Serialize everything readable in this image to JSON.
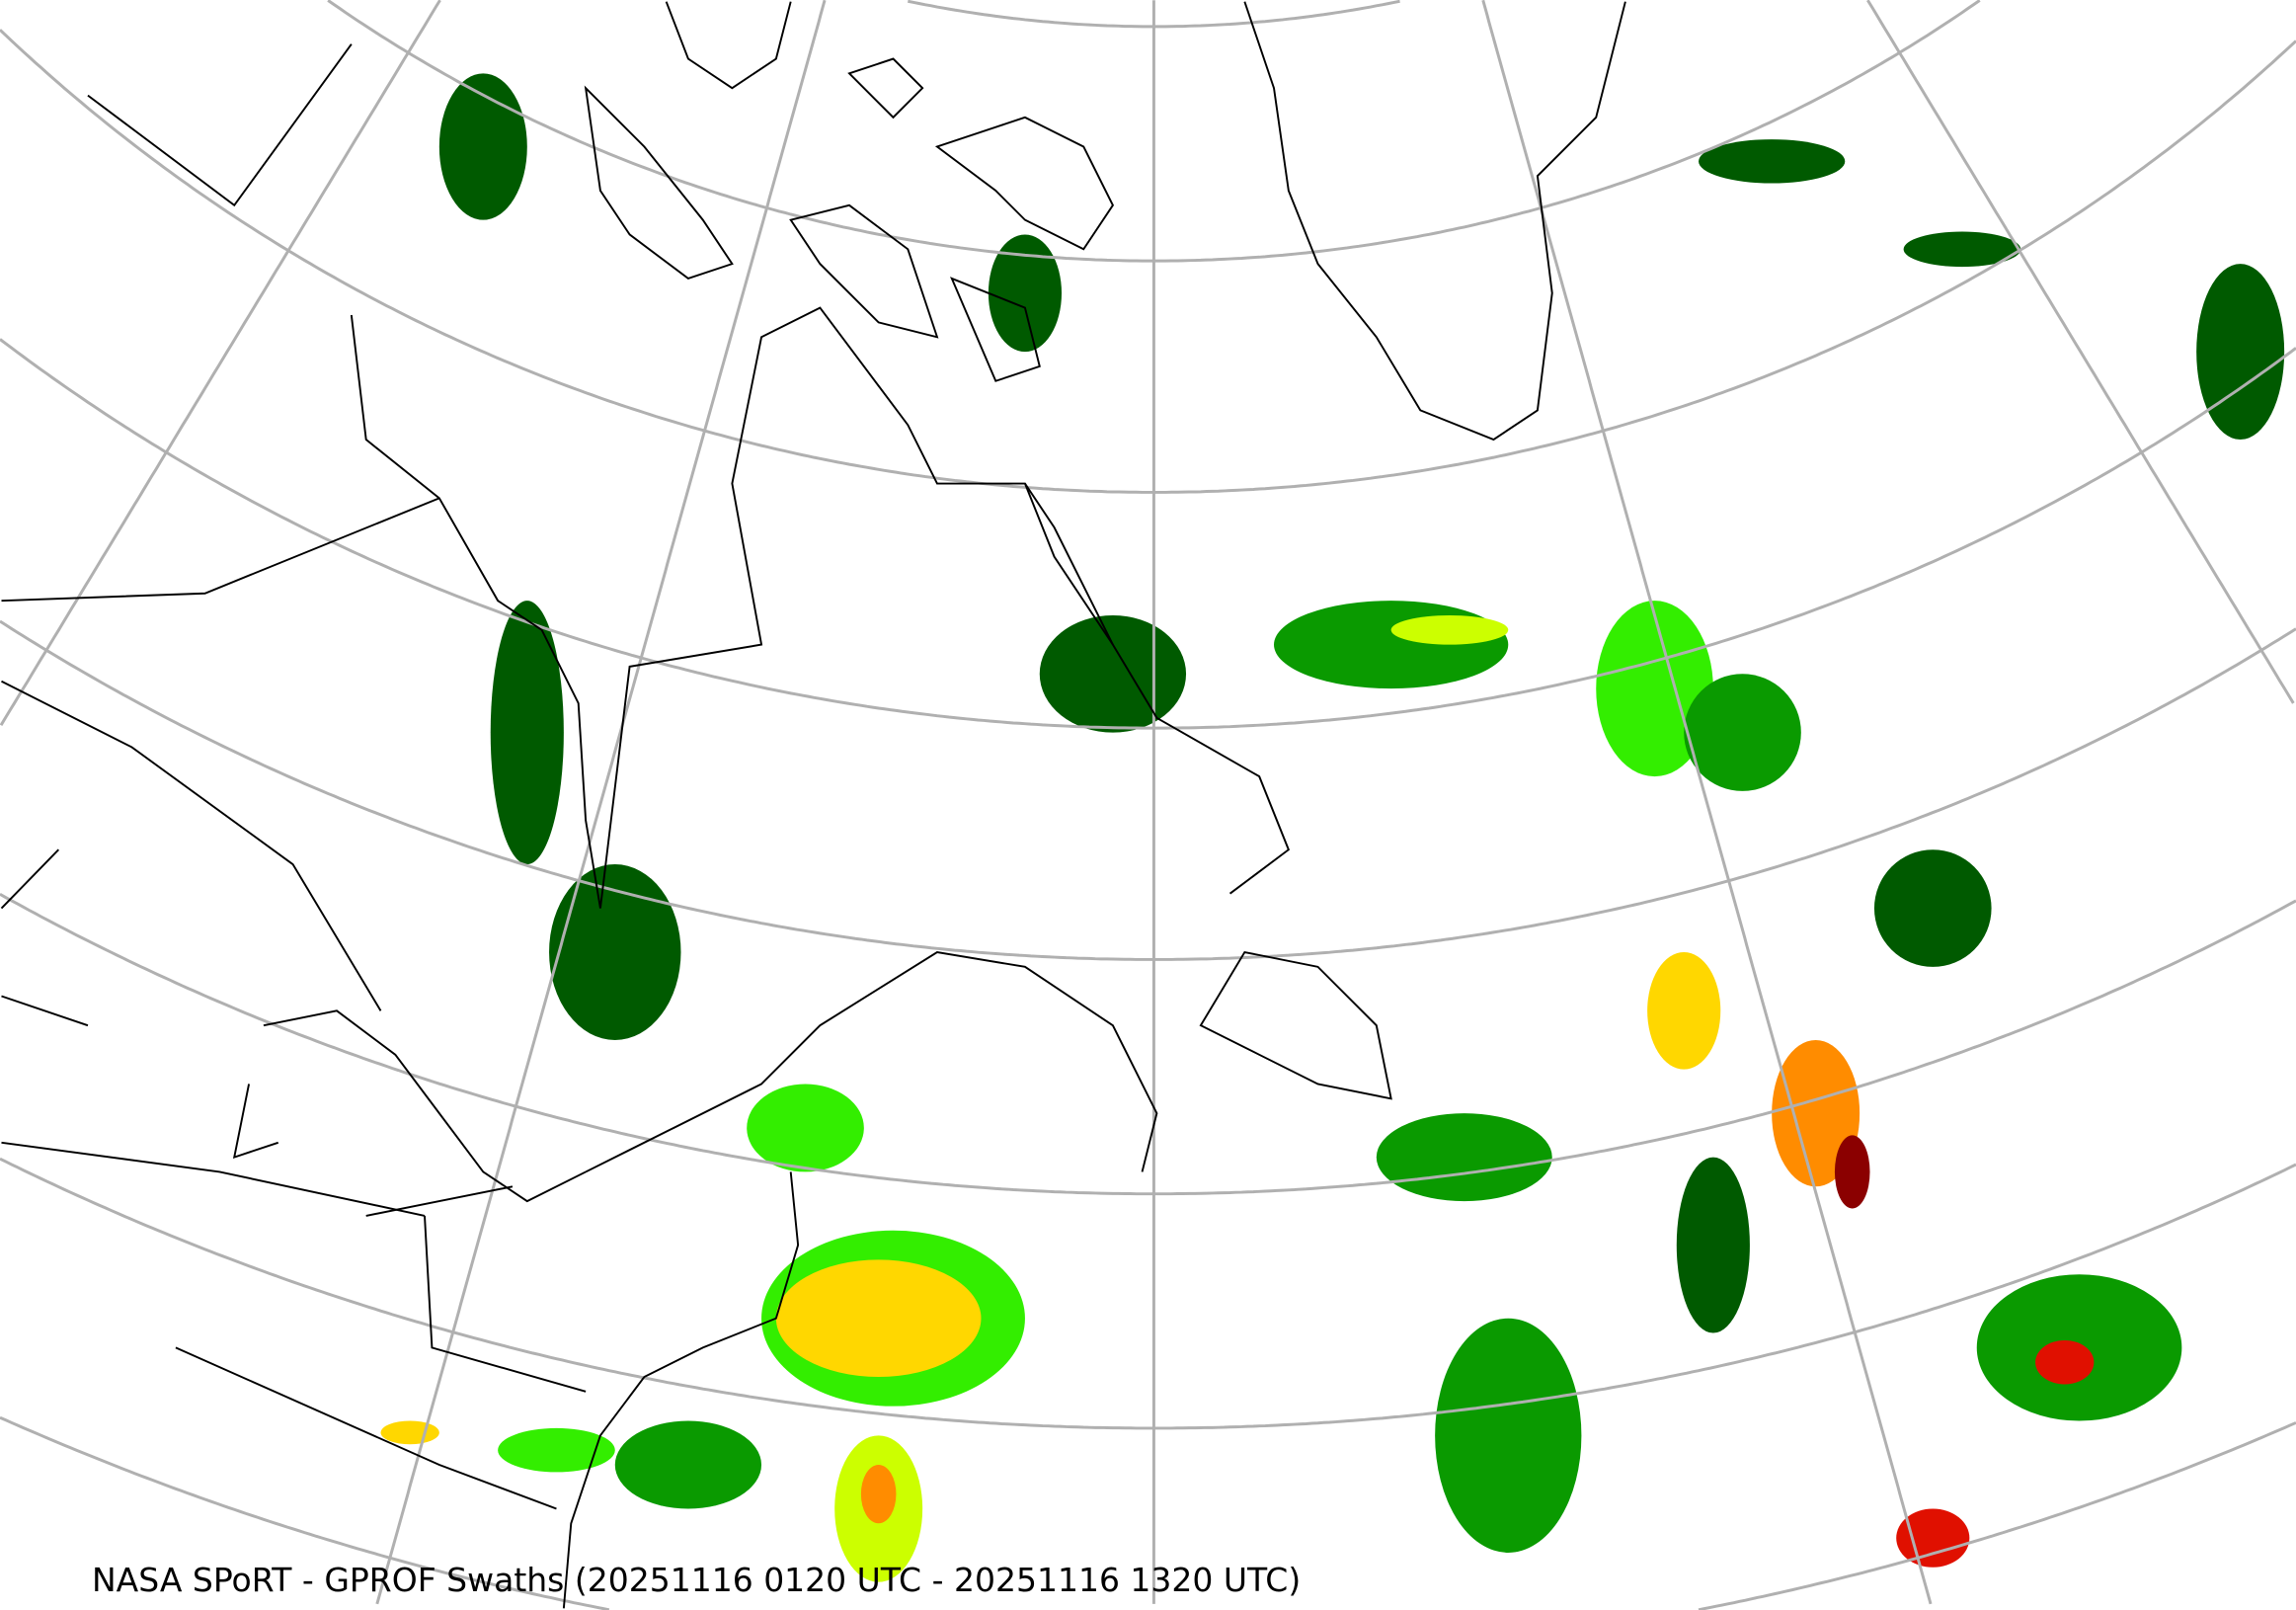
{
  "title": "NASA SPoRT - GPROF Swaths (20251116 0120 UTC - 20251116 1320 UTC)",
  "colors": {
    "background": "#ffffff",
    "graticule": "#b0b0b0",
    "coastline": "#000000",
    "precip_scale": [
      "#005a00",
      "#0a9a00",
      "#33ee00",
      "#ccff00",
      "#ffd700",
      "#ff8c00",
      "#e01000",
      "#8b0000"
    ]
  }
}
